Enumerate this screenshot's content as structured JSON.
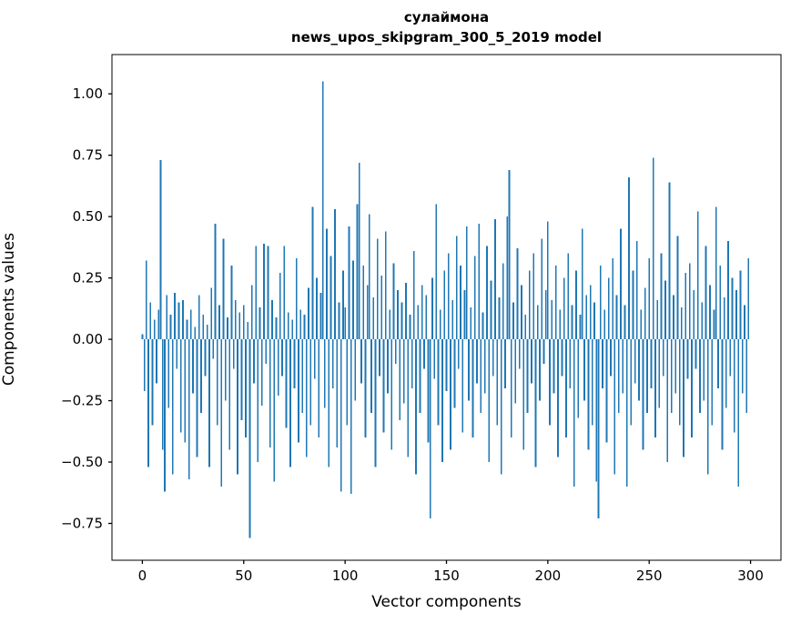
{
  "title": {
    "line1": "сулаймона",
    "line2": "news_upos_skipgram_300_5_2019 model"
  },
  "chart_data": {
    "type": "bar",
    "title": "сулаймона\nnews_upos_skipgram_300_5_2019 model",
    "xlabel": "Vector components",
    "ylabel": "Components values",
    "xlim": [
      -15,
      315
    ],
    "ylim": [
      -0.9,
      1.16
    ],
    "grid": false,
    "legend": "none",
    "bar_color": "#1f77b4",
    "xticks": {
      "values": [
        0,
        50,
        100,
        150,
        200,
        250,
        300
      ],
      "labels": [
        "0",
        "50",
        "100",
        "150",
        "200",
        "250",
        "300"
      ]
    },
    "yticks": {
      "values": [
        1.0,
        0.75,
        0.5,
        0.25,
        0.0,
        -0.25,
        -0.5,
        -0.75
      ],
      "labels": [
        "1.00",
        "0.75",
        "0.50",
        "0.25",
        "0.00",
        "−0.25",
        "−0.50",
        "−0.75"
      ]
    },
    "x_start": 0,
    "values": [
      0.02,
      -0.21,
      0.32,
      -0.52,
      0.15,
      -0.35,
      0.08,
      -0.18,
      0.12,
      0.73,
      -0.45,
      -0.62,
      0.18,
      -0.28,
      0.1,
      -0.55,
      0.19,
      -0.12,
      0.15,
      -0.38,
      0.16,
      -0.42,
      0.08,
      -0.57,
      0.12,
      -0.22,
      0.05,
      -0.48,
      0.18,
      -0.3,
      0.1,
      -0.15,
      0.06,
      -0.52,
      0.21,
      -0.08,
      0.47,
      -0.35,
      0.14,
      -0.6,
      0.41,
      -0.25,
      0.09,
      -0.45,
      0.3,
      -0.12,
      0.16,
      -0.55,
      0.11,
      -0.33,
      0.14,
      -0.4,
      0.07,
      -0.81,
      0.22,
      -0.18,
      0.38,
      -0.5,
      0.13,
      -0.27,
      0.39,
      -0.1,
      0.38,
      -0.44,
      0.16,
      -0.58,
      0.09,
      -0.23,
      0.27,
      -0.15,
      0.38,
      -0.36,
      0.11,
      -0.52,
      0.08,
      -0.2,
      0.33,
      -0.42,
      0.12,
      -0.3,
      0.1,
      -0.48,
      0.21,
      -0.35,
      0.54,
      -0.16,
      0.25,
      -0.4,
      0.19,
      1.05,
      -0.28,
      0.45,
      -0.52,
      0.34,
      -0.2,
      0.53,
      -0.44,
      0.15,
      -0.62,
      0.28,
      0.13,
      -0.35,
      0.46,
      -0.63,
      0.32,
      -0.25,
      0.55,
      0.72,
      -0.18,
      0.3,
      -0.4,
      0.22,
      0.51,
      -0.3,
      0.17,
      -0.52,
      0.41,
      -0.15,
      0.26,
      -0.38,
      0.44,
      -0.22,
      0.12,
      -0.45,
      0.31,
      -0.1,
      0.2,
      -0.33,
      0.15,
      -0.26,
      0.23,
      -0.48,
      0.1,
      -0.2,
      0.36,
      -0.55,
      0.14,
      -0.3,
      0.22,
      -0.12,
      0.18,
      -0.42,
      -0.73,
      0.25,
      -0.16,
      0.55,
      -0.35,
      0.12,
      -0.5,
      0.28,
      -0.21,
      0.35,
      -0.45,
      0.16,
      -0.28,
      0.42,
      -0.12,
      0.3,
      -0.38,
      0.2,
      0.46,
      -0.25,
      0.13,
      -0.4,
      0.34,
      -0.18,
      0.47,
      -0.3,
      0.11,
      -0.22,
      0.38,
      -0.5,
      0.24,
      -0.15,
      0.49,
      -0.35,
      0.17,
      -0.55,
      0.31,
      -0.2,
      0.5,
      0.69,
      -0.4,
      0.15,
      -0.26,
      0.37,
      -0.12,
      0.22,
      -0.45,
      0.1,
      -0.3,
      0.28,
      -0.18,
      0.35,
      -0.52,
      0.14,
      -0.25,
      0.41,
      -0.1,
      0.2,
      0.48,
      -0.35,
      0.16,
      -0.22,
      0.3,
      -0.48,
      0.12,
      -0.15,
      0.25,
      -0.4,
      0.35,
      -0.2,
      0.14,
      -0.6,
      0.28,
      -0.32,
      0.1,
      0.45,
      -0.25,
      0.18,
      -0.45,
      0.22,
      -0.35,
      0.15,
      -0.58,
      -0.73,
      0.3,
      -0.2,
      0.12,
      -0.42,
      0.25,
      -0.15,
      0.33,
      -0.55,
      0.18,
      -0.3,
      0.45,
      -0.22,
      0.14,
      -0.6,
      0.66,
      -0.35,
      0.28,
      -0.18,
      0.4,
      -0.25,
      0.12,
      -0.45,
      0.21,
      -0.3,
      0.33,
      -0.2,
      0.74,
      -0.4,
      0.16,
      -0.28,
      0.35,
      -0.15,
      0.24,
      -0.5,
      0.64,
      -0.3,
      0.18,
      -0.22,
      0.42,
      -0.35,
      0.13,
      -0.48,
      0.27,
      -0.16,
      0.31,
      -0.4,
      0.2,
      -0.12,
      0.52,
      -0.3,
      0.15,
      -0.25,
      0.38,
      -0.55,
      0.22,
      -0.35,
      0.12,
      0.54,
      -0.2,
      0.3,
      -0.45,
      0.17,
      -0.28,
      0.4,
      -0.15,
      0.25,
      -0.38,
      0.2,
      -0.6,
      0.28,
      -0.22,
      0.14,
      -0.3,
      0.33
    ]
  }
}
